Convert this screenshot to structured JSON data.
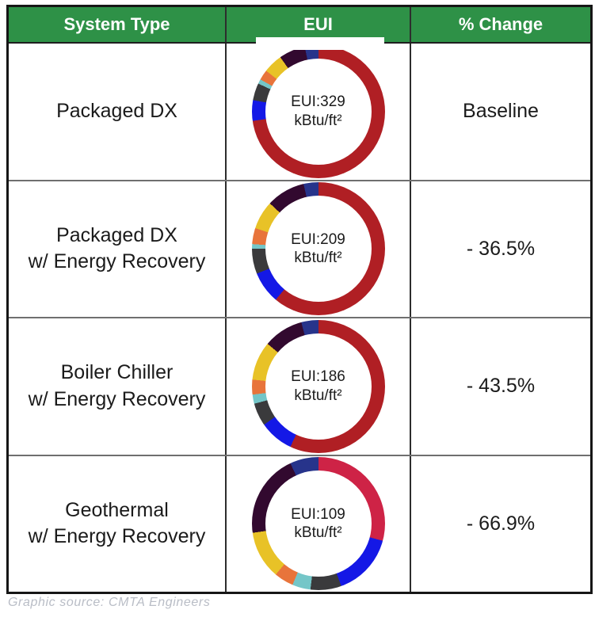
{
  "header": {
    "columns": [
      "System Type",
      "EUI",
      "% Change"
    ],
    "bg_color": "#2E9147",
    "text_color": "#FFFFFF"
  },
  "footer": {
    "text": "Graphic source: CMTA Engineers"
  },
  "palette": {
    "red": "#B01F24",
    "crimson": "#CE2346",
    "navy": "#27348B",
    "purple": "#32092F",
    "yellow": "#E8C227",
    "orange": "#E8743B",
    "teal": "#74C6C8",
    "gray": "#3A3A3C",
    "blue": "#1418E6"
  },
  "chart_data": [
    {
      "type": "donut",
      "system_line1": "Packaged DX",
      "system_line2": "",
      "eui_kbtu_per_ft2": 329,
      "center_label_line1": "EUI:329",
      "center_label_line2": "kBtu/ft²",
      "percent_change": "Baseline",
      "segments_clockwise_from_top": [
        {
          "color": "red",
          "degrees": 262
        },
        {
          "color": "blue",
          "degrees": 18
        },
        {
          "color": "gray",
          "degrees": 15
        },
        {
          "color": "teal",
          "degrees": 4
        },
        {
          "color": "orange",
          "degrees": 9
        },
        {
          "color": "yellow",
          "degrees": 17
        },
        {
          "color": "purple",
          "degrees": 23
        },
        {
          "color": "navy",
          "degrees": 12
        }
      ]
    },
    {
      "type": "donut",
      "system_line1": "Packaged DX",
      "system_line2": "w/ Energy Recovery",
      "eui_kbtu_per_ft2": 209,
      "center_label_line1": "EUI:209",
      "center_label_line2": "kBtu/ft²",
      "percent_change": "- 36.5%",
      "segments_clockwise_from_top": [
        {
          "color": "red",
          "degrees": 220
        },
        {
          "color": "blue",
          "degrees": 28
        },
        {
          "color": "gray",
          "degrees": 22
        },
        {
          "color": "teal",
          "degrees": 4
        },
        {
          "color": "orange",
          "degrees": 14
        },
        {
          "color": "yellow",
          "degrees": 25
        },
        {
          "color": "purple",
          "degrees": 34
        },
        {
          "color": "navy",
          "degrees": 13
        }
      ]
    },
    {
      "type": "donut",
      "system_line1": "Boiler Chiller",
      "system_line2": "w/ Energy Recovery",
      "eui_kbtu_per_ft2": 186,
      "center_label_line1": "EUI:186",
      "center_label_line2": "kBtu/ft²",
      "percent_change": "- 43.5%",
      "segments_clockwise_from_top": [
        {
          "color": "red",
          "degrees": 205
        },
        {
          "color": "blue",
          "degrees": 30
        },
        {
          "color": "gray",
          "degrees": 20
        },
        {
          "color": "teal",
          "degrees": 8
        },
        {
          "color": "orange",
          "degrees": 13
        },
        {
          "color": "yellow",
          "degrees": 34
        },
        {
          "color": "purple",
          "degrees": 35
        },
        {
          "color": "navy",
          "degrees": 15
        }
      ]
    },
    {
      "type": "donut",
      "system_line1": "Geothermal",
      "system_line2": "w/ Energy Recovery",
      "eui_kbtu_per_ft2": 109,
      "center_label_line1": "EUI:109",
      "center_label_line2": "kBtu/ft²",
      "percent_change": "- 66.9%",
      "segments_clockwise_from_top": [
        {
          "color": "crimson",
          "degrees": 105
        },
        {
          "color": "blue",
          "degrees": 55
        },
        {
          "color": "gray",
          "degrees": 27
        },
        {
          "color": "teal",
          "degrees": 16
        },
        {
          "color": "orange",
          "degrees": 17
        },
        {
          "color": "yellow",
          "degrees": 42
        },
        {
          "color": "purple",
          "degrees": 73
        },
        {
          "color": "navy",
          "degrees": 25
        }
      ]
    }
  ]
}
